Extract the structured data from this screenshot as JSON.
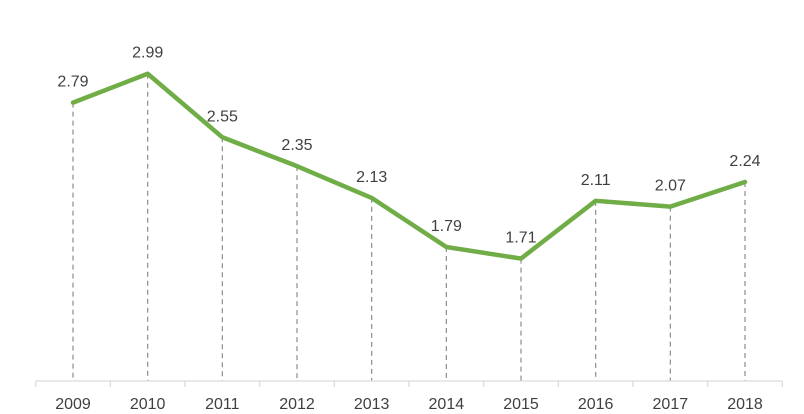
{
  "chart_data": {
    "type": "line",
    "title": "",
    "xlabel": "",
    "ylabel": "",
    "categories": [
      "2009",
      "2010",
      "2011",
      "2012",
      "2013",
      "2014",
      "2015",
      "2016",
      "2017",
      "2018"
    ],
    "series": [
      {
        "values": [
          2.79,
          2.99,
          2.55,
          2.35,
          2.13,
          1.79,
          1.71,
          2.11,
          2.07,
          2.24
        ]
      }
    ],
    "data_labels": [
      "2.79",
      "2.99",
      "2.55",
      "2.35",
      "2.13",
      "1.79",
      "1.71",
      "2.11",
      "2.07",
      "2.24"
    ],
    "ylim": [
      0,
      3.2
    ],
    "grid": false,
    "drop_lines": true,
    "colors": {
      "line": "#70AD47",
      "axis": "#D9D9D9",
      "drop_line": "#8C8C8C",
      "text": "#404040"
    }
  }
}
